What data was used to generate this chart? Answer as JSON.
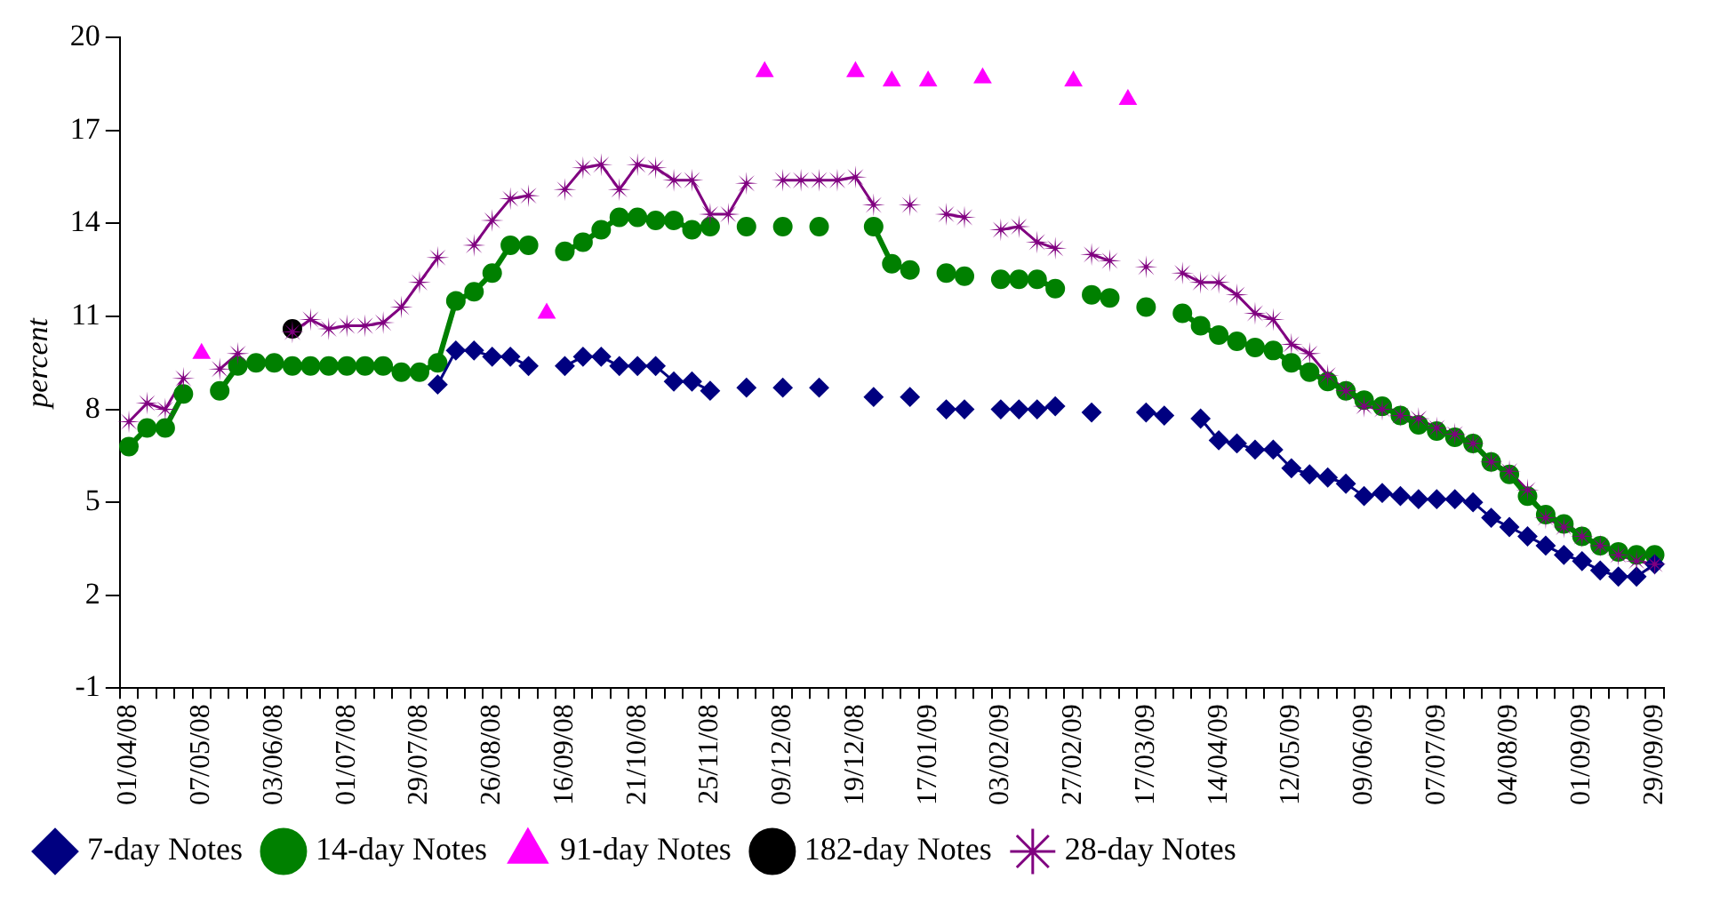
{
  "chart_data": {
    "type": "line",
    "ylabel": "percent",
    "categories": [
      "01/04/08",
      null,
      null,
      null,
      "07/05/08",
      null,
      null,
      null,
      "03/06/08",
      null,
      null,
      null,
      "01/07/08",
      null,
      null,
      null,
      "29/07/08",
      null,
      null,
      null,
      "26/08/08",
      null,
      null,
      null,
      "16/09/08",
      null,
      null,
      null,
      "21/10/08",
      null,
      null,
      null,
      "25/11/08",
      null,
      null,
      null,
      "09/12/08",
      null,
      null,
      null,
      "19/12/08",
      null,
      null,
      null,
      "17/01/09",
      null,
      null,
      null,
      "03/02/09",
      null,
      null,
      null,
      "27/02/09",
      null,
      null,
      null,
      "17/03/09",
      null,
      null,
      null,
      "14/04/09",
      null,
      null,
      null,
      "12/05/09",
      null,
      null,
      null,
      "09/06/09",
      null,
      null,
      null,
      "07/07/09",
      null,
      null,
      null,
      "04/08/09",
      null,
      null,
      null,
      "01/09/09",
      null,
      null,
      null,
      "29/09/09"
    ],
    "series": [
      {
        "name": "7-day Notes",
        "color": "#000080",
        "marker": "diamond",
        "values": [
          null,
          null,
          null,
          null,
          null,
          null,
          null,
          null,
          null,
          null,
          null,
          null,
          null,
          null,
          null,
          null,
          null,
          8.8,
          9.9,
          9.9,
          9.7,
          9.7,
          9.4,
          null,
          9.4,
          9.7,
          9.7,
          9.4,
          9.4,
          9.4,
          8.9,
          8.9,
          8.6,
          null,
          8.7,
          null,
          8.7,
          null,
          8.7,
          null,
          null,
          8.4,
          null,
          8.4,
          null,
          8.0,
          8.0,
          null,
          8.0,
          8.0,
          8.0,
          8.1,
          null,
          7.9,
          null,
          null,
          7.9,
          7.8,
          null,
          7.7,
          7.0,
          6.9,
          6.7,
          6.7,
          6.1,
          5.9,
          5.8,
          5.6,
          5.2,
          5.3,
          5.2,
          5.1,
          5.1,
          5.1,
          5.0,
          4.5,
          4.2,
          3.9,
          3.6,
          3.3,
          3.1,
          2.8,
          2.6,
          2.6,
          3.0
        ]
      },
      {
        "name": "14-day Notes",
        "color": "#008000",
        "marker": "circle",
        "values": [
          6.8,
          7.4,
          7.4,
          8.5,
          null,
          8.6,
          9.4,
          9.5,
          9.5,
          9.4,
          9.4,
          9.4,
          9.4,
          9.4,
          9.4,
          9.2,
          9.2,
          9.5,
          11.5,
          11.8,
          12.4,
          13.3,
          13.3,
          null,
          13.1,
          13.4,
          13.8,
          14.2,
          14.2,
          14.1,
          14.1,
          13.8,
          13.9,
          null,
          13.9,
          null,
          13.9,
          null,
          13.9,
          null,
          null,
          13.9,
          12.7,
          12.5,
          null,
          12.4,
          12.3,
          null,
          12.2,
          12.2,
          12.2,
          11.9,
          null,
          11.7,
          11.6,
          null,
          11.3,
          null,
          11.1,
          10.7,
          10.4,
          10.2,
          10.0,
          9.9,
          9.5,
          9.2,
          8.9,
          8.6,
          8.3,
          8.1,
          7.8,
          7.5,
          7.3,
          7.1,
          6.9,
          6.3,
          5.9,
          5.2,
          4.6,
          4.3,
          3.9,
          3.6,
          3.4,
          3.3,
          3.3
        ]
      },
      {
        "name": "91-day Notes",
        "type": "scatter",
        "color": "#ff00ff",
        "marker": "triangle",
        "values": [
          null,
          null,
          null,
          null,
          9.8,
          null,
          null,
          null,
          null,
          null,
          null,
          null,
          null,
          null,
          null,
          null,
          null,
          null,
          null,
          null,
          null,
          null,
          null,
          11.1,
          null,
          null,
          null,
          null,
          null,
          null,
          null,
          null,
          null,
          null,
          null,
          18.9,
          null,
          null,
          null,
          null,
          18.9,
          null,
          18.6,
          null,
          18.6,
          null,
          null,
          18.7,
          null,
          null,
          null,
          null,
          18.6,
          null,
          null,
          18.0,
          null,
          null,
          null,
          null,
          null,
          null,
          null,
          null,
          null,
          null,
          null,
          null,
          null,
          null,
          null,
          null,
          null,
          null,
          null,
          null,
          null,
          null,
          null,
          null,
          null,
          null,
          null,
          null,
          null
        ]
      },
      {
        "name": "182-day Notes",
        "type": "scatter",
        "color": "#000000",
        "marker": "circle",
        "values": [
          null,
          null,
          null,
          null,
          null,
          null,
          null,
          null,
          null,
          10.6,
          null,
          null,
          null,
          null,
          null,
          null,
          null,
          null,
          null,
          null,
          null,
          null,
          null,
          null,
          null,
          null,
          null,
          null,
          null,
          null,
          null,
          null,
          null,
          null,
          null,
          null,
          null,
          null,
          null,
          null,
          null,
          null,
          null,
          null,
          null,
          null,
          null,
          null,
          null,
          null,
          null,
          null,
          null,
          null,
          null,
          null,
          null,
          null,
          null,
          null,
          null,
          null,
          null,
          null,
          null,
          null,
          null,
          null,
          null,
          null,
          null,
          null,
          null,
          null,
          null,
          null,
          null,
          null,
          null,
          null,
          null,
          null,
          null,
          null,
          null
        ]
      },
      {
        "name": "28-day Notes",
        "color": "#800080",
        "marker": "star",
        "values": [
          7.6,
          8.2,
          8.0,
          9.0,
          null,
          9.3,
          9.8,
          null,
          null,
          10.5,
          10.9,
          10.6,
          10.7,
          10.7,
          10.8,
          11.3,
          12.1,
          12.9,
          null,
          13.3,
          14.1,
          14.8,
          14.9,
          null,
          15.1,
          15.8,
          15.9,
          15.1,
          15.9,
          15.8,
          15.4,
          15.4,
          14.3,
          14.3,
          15.3,
          null,
          15.4,
          15.4,
          15.4,
          15.4,
          15.5,
          14.6,
          null,
          14.6,
          null,
          14.3,
          14.2,
          null,
          13.8,
          13.9,
          13.4,
          13.2,
          null,
          13.0,
          12.8,
          null,
          12.6,
          null,
          12.4,
          12.1,
          12.1,
          11.7,
          11.1,
          10.9,
          10.1,
          9.8,
          9.1,
          8.6,
          8.1,
          8.0,
          7.8,
          7.7,
          7.4,
          7.2,
          6.9,
          6.3,
          6.0,
          5.4,
          4.5,
          4.2,
          3.9,
          3.6,
          3.3,
          3.1,
          3.0
        ]
      }
    ],
    "ylim": [
      -1,
      20
    ],
    "yticks": [
      -1,
      2,
      5,
      8,
      11,
      14,
      17,
      20
    ],
    "grid": false,
    "legend": "bottom"
  }
}
